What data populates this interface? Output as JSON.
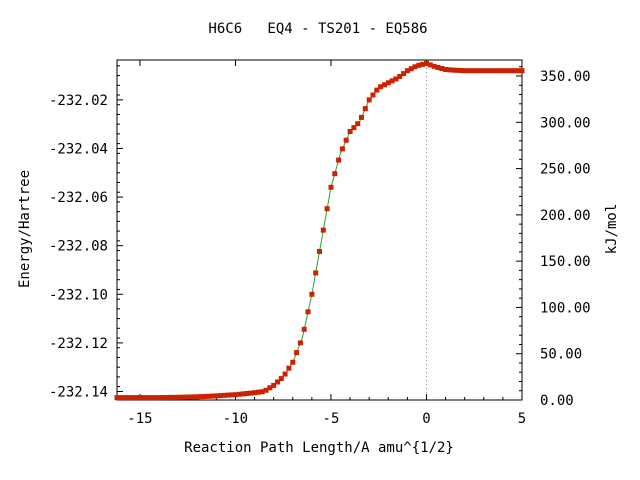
{
  "chart_data": {
    "type": "line",
    "title": "H6C6   EQ4 - TS201 - EQ586",
    "xlabel": "Reaction Path Length/A amu^{1/2}",
    "ylabel_left": "Energy/Hartree",
    "ylabel_right": "kJ/mol",
    "xlim": [
      -16.2,
      5
    ],
    "ylim_left": [
      -232.1435,
      -232.0036
    ],
    "ylim_right": [
      0,
      367.3
    ],
    "x_ticks": [
      -15,
      -10,
      -5,
      0,
      5
    ],
    "x_tick_labels": [
      "-15",
      "-10",
      "-5",
      "0",
      "5"
    ],
    "y_left_ticks": [
      -232.14,
      -232.12,
      -232.1,
      -232.08,
      -232.06,
      -232.04,
      -232.02
    ],
    "y_left_tick_labels": [
      "-232.14",
      "-232.12",
      "-232.10",
      "-232.08",
      "-232.06",
      "-232.04",
      "-232.02"
    ],
    "y_right_ticks": [
      0,
      50,
      100,
      150,
      200,
      250,
      300,
      350
    ],
    "y_right_tick_labels": [
      "0.00",
      "50.00",
      "100.00",
      "150.00",
      "200.00",
      "250.00",
      "300.00",
      "350.00"
    ],
    "grid": false,
    "ts_marker_x": 0,
    "colors": {
      "line": "#2ca02c",
      "marker": "#cc2200",
      "ts_line": "#888888"
    },
    "series": [
      {
        "values_x": [
          -16.2,
          -15,
          -14,
          -13,
          -12,
          -11,
          -10,
          -9,
          -8.5,
          -8,
          -7.5,
          -7,
          -6.5,
          -6,
          -5.5,
          -5,
          -4.5,
          -4,
          -3.5,
          -3,
          -2.5,
          -2,
          -1.5,
          -1,
          -0.5,
          0,
          0.5,
          1,
          1.5,
          2,
          3,
          4,
          5
        ],
        "values_y": [
          -232.1425,
          -232.1425,
          -232.1425,
          -232.1424,
          -232.1422,
          -232.1418,
          -232.1413,
          -232.1405,
          -232.14,
          -232.1375,
          -232.134,
          -232.128,
          -232.118,
          -232.1,
          -232.078,
          -232.056,
          -232.042,
          -232.033,
          -232.029,
          -232.02,
          -232.015,
          -232.013,
          -232.011,
          -232.008,
          -232.006,
          -232.005,
          -232.0065,
          -232.0075,
          -232.0078,
          -232.008,
          -232.008,
          -232.008,
          -232.008
        ]
      }
    ]
  }
}
